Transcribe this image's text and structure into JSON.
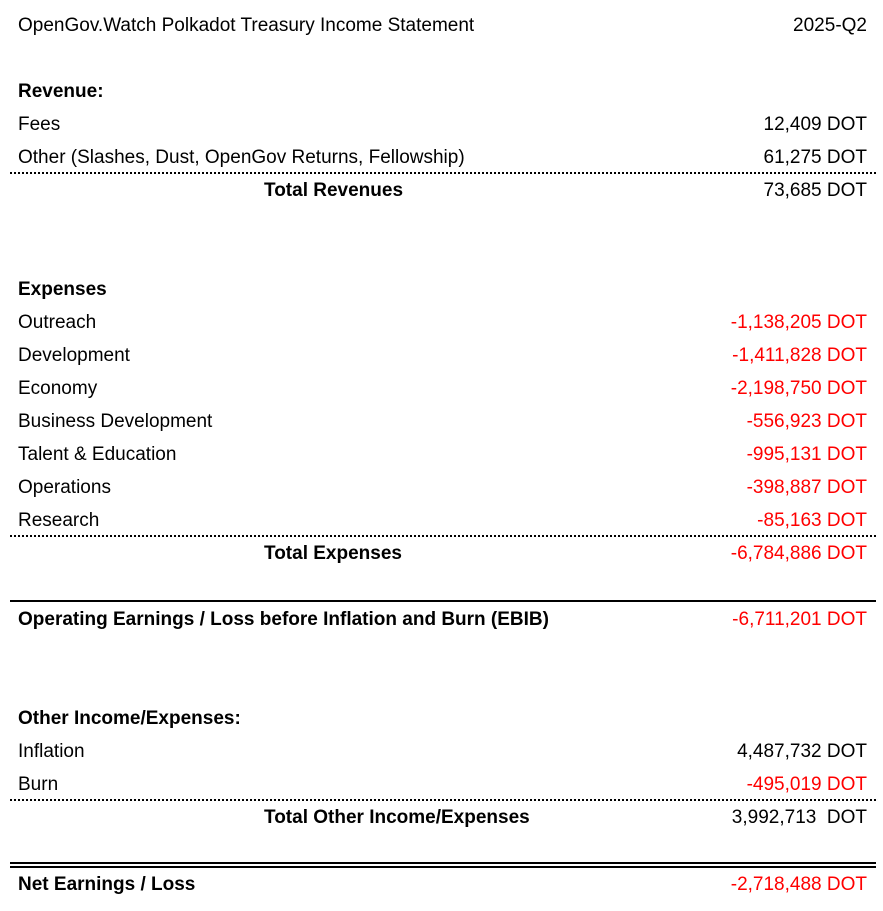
{
  "header": {
    "title": "OpenGov.Watch Polkadot Treasury Income Statement",
    "period": "2025-Q2"
  },
  "revenue": {
    "heading": "Revenue:",
    "items": [
      {
        "label": "Fees",
        "value": "12,409 DOT"
      },
      {
        "label": "Other (Slashes, Dust, OpenGov Returns, Fellowship)",
        "value": "61,275 DOT"
      }
    ],
    "total_label": "Total Revenues",
    "total_value": "73,685 DOT"
  },
  "expenses": {
    "heading": "Expenses",
    "items": [
      {
        "label": "Outreach",
        "value": "-1,138,205 DOT"
      },
      {
        "label": "Development",
        "value": "-1,411,828 DOT"
      },
      {
        "label": "Economy",
        "value": "-2,198,750 DOT"
      },
      {
        "label": "Business Development",
        "value": "-556,923 DOT"
      },
      {
        "label": "Talent & Education",
        "value": "-995,131 DOT"
      },
      {
        "label": "Operations",
        "value": "-398,887 DOT"
      },
      {
        "label": "Research",
        "value": "-85,163 DOT"
      }
    ],
    "total_label": "Total Expenses",
    "total_value": "-6,784,886 DOT"
  },
  "ebib": {
    "label": "Operating Earnings / Loss before Inflation and Burn (EBIB)",
    "value": "-6,711,201 DOT"
  },
  "other": {
    "heading": "Other Income/Expenses:",
    "items": [
      {
        "label": "Inflation",
        "value": "4,487,732 DOT"
      },
      {
        "label": "Burn",
        "value": "-495,019 DOT"
      }
    ],
    "total_label": "Total Other Income/Expenses",
    "total_value": "3,992,713  DOT"
  },
  "net": {
    "label": "Net Earnings / Loss",
    "value": "-2,718,488 DOT"
  },
  "colors": {
    "negative": "#ff0000",
    "text": "#000000"
  }
}
